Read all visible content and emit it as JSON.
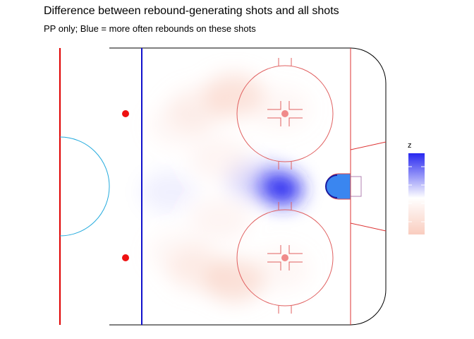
{
  "chart_data": {
    "type": "heatmap",
    "title": "Difference between rebound-generating shots and all shots",
    "subtitle": "PP only; Blue = more often rebounds on these shots",
    "xlabel": "",
    "ylabel": "",
    "grid": false,
    "legend": {
      "title": "z",
      "placement": "right",
      "low_color": "#f9cdbf",
      "mid_color": "#ffffff",
      "high_color": "#2828f0"
    },
    "colors": {
      "boards": "#000000",
      "red_line": "#e00000",
      "blue_line": "#1010cc",
      "faceoff_dot": "#ee1111",
      "circles": "#e06060",
      "crease_line": "#dd4444",
      "crease_fill": "#3370f0",
      "center_circle": "#22aadd"
    },
    "zones": [
      {
        "x": 0.63,
        "y": 0.51,
        "z": 1.0
      },
      {
        "x": 0.6,
        "y": 0.5,
        "z": 0.55
      },
      {
        "x": 0.53,
        "y": 0.48,
        "z": 0.18
      },
      {
        "x": 0.45,
        "y": 0.17,
        "z": -0.35
      },
      {
        "x": 0.32,
        "y": 0.22,
        "z": -0.18
      },
      {
        "x": 0.25,
        "y": 0.28,
        "z": -0.1
      },
      {
        "x": 0.45,
        "y": 0.84,
        "z": -0.38
      },
      {
        "x": 0.32,
        "y": 0.8,
        "z": -0.2
      },
      {
        "x": 0.25,
        "y": 0.74,
        "z": -0.1
      },
      {
        "x": 0.4,
        "y": 0.4,
        "z": -0.12
      },
      {
        "x": 0.4,
        "y": 0.62,
        "z": -0.12
      },
      {
        "x": 0.22,
        "y": 0.52,
        "z": 0.06
      },
      {
        "x": 0.62,
        "y": 0.22,
        "z": -0.1
      },
      {
        "x": 0.62,
        "y": 0.8,
        "z": -0.1
      }
    ]
  }
}
